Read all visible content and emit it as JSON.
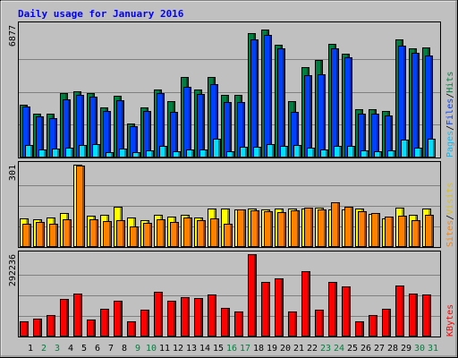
{
  "chart_data": {
    "type": "bar",
    "title": "Daily usage for January 2016",
    "categories": [
      "1",
      "2",
      "3",
      "4",
      "5",
      "6",
      "7",
      "8",
      "9",
      "10",
      "11",
      "12",
      "13",
      "14",
      "15",
      "16",
      "17",
      "18",
      "19",
      "20",
      "21",
      "22",
      "23",
      "24",
      "25",
      "26",
      "27",
      "28",
      "29",
      "30",
      "31"
    ],
    "weekend_days": [
      "2",
      "3",
      "9",
      "10",
      "16",
      "17",
      "23",
      "24",
      "30",
      "31"
    ],
    "panels": [
      {
        "name": "pages-files-hits",
        "ymax": 6877,
        "ymax_label": "6877",
        "right_labels": [
          "Pages",
          "Files",
          "Hits"
        ],
        "series": [
          {
            "name": "Hits",
            "color": "#008040",
            "values": [
              2760,
              2270,
              2270,
              3380,
              3470,
              3380,
              2600,
              3210,
              1780,
              2600,
              3560,
              2950,
              4220,
              3560,
              4220,
              3290,
              3290,
              6510,
              6690,
              5890,
              2940,
              4730,
              5110,
              5950,
              5450,
              2520,
              2520,
              2440,
              6160,
              5690,
              5770
            ]
          },
          {
            "name": "Files",
            "color": "#0040ff",
            "values": [
              2650,
              2130,
              2080,
              3050,
              3280,
              3180,
              2430,
              3010,
              1650,
              2440,
              3380,
              2370,
              3690,
              3310,
              3840,
              2910,
              2900,
              6160,
              6420,
              5690,
              2380,
              4310,
              4370,
              5710,
              5250,
              2280,
              2280,
              2200,
              5850,
              5470,
              5320
            ]
          },
          {
            "name": "Pages",
            "color": "#00e0ff",
            "values": [
              650,
              410,
              450,
              500,
              640,
              690,
              300,
              460,
              280,
              380,
              610,
              330,
              400,
              410,
              960,
              320,
              560,
              540,
              710,
              610,
              640,
              530,
              430,
              630,
              620,
              370,
              330,
              370,
              950,
              510,
              970
            ]
          }
        ]
      },
      {
        "name": "sites-visits",
        "ymax": 301,
        "ymax_label": "301",
        "right_labels": [
          "Sites",
          "Visits"
        ],
        "series": [
          {
            "name": "Visits",
            "color": "#ffff00",
            "values": [
              104,
              101,
              109,
              123,
              301,
              114,
              118,
              146,
              107,
              99,
              118,
              112,
              118,
              109,
              141,
              142,
              139,
              140,
              139,
              140,
              140,
              140,
              144,
              136,
              139,
              140,
              122,
              106,
              143,
              118,
              140
            ]
          },
          {
            "name": "Sites",
            "color": "#ff8000",
            "values": [
              86,
              90,
              84,
              100,
              298,
              100,
              96,
              97,
              75,
              88,
              102,
              90,
              107,
              97,
              105,
              85,
              136,
              135,
              130,
              129,
              134,
              144,
              136,
              164,
              147,
              131,
              124,
              112,
              113,
              99,
              119
            ]
          }
        ]
      },
      {
        "name": "kbytes",
        "ymax": 292236,
        "ymax_label": "292236",
        "right_labels": [
          "KBytes"
        ],
        "series": [
          {
            "name": "KBytes",
            "color": "#ff0000",
            "values": [
              55000,
              65000,
              75000,
              132000,
              152000,
              60000,
              97000,
              128000,
              55000,
              95000,
              158000,
              128000,
              140000,
              138000,
              148000,
              103000,
              88000,
              292236,
              195000,
              207000,
              90000,
              232000,
              95000,
              193000,
              178000,
              55000,
              75000,
              98000,
              182000,
              152000,
              150000
            ]
          }
        ]
      }
    ]
  }
}
